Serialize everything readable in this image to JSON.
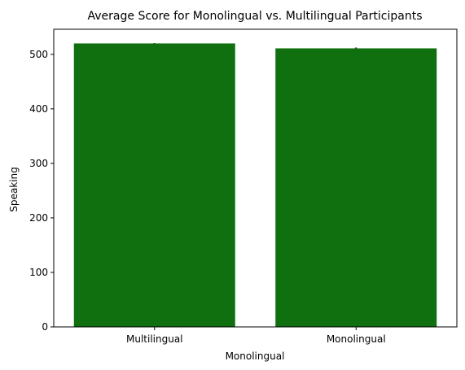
{
  "chart_data": {
    "type": "bar",
    "title": "Average Score for Monolingual vs. Multilingual Participants",
    "xlabel": "Monolingual",
    "ylabel": "Speaking",
    "categories": [
      "Multilingual",
      "Monolingual"
    ],
    "values": [
      520,
      511
    ],
    "error": [
      0.5,
      1.5
    ],
    "ylim": [
      0,
      546
    ],
    "yticks": [
      0,
      100,
      200,
      300,
      400,
      500
    ],
    "ytick_labels": [
      "0",
      "100",
      "200",
      "300",
      "400",
      "500"
    ],
    "grid": false,
    "legend": "none",
    "bar_color": "#107010",
    "errorbar_color": "#404040"
  }
}
